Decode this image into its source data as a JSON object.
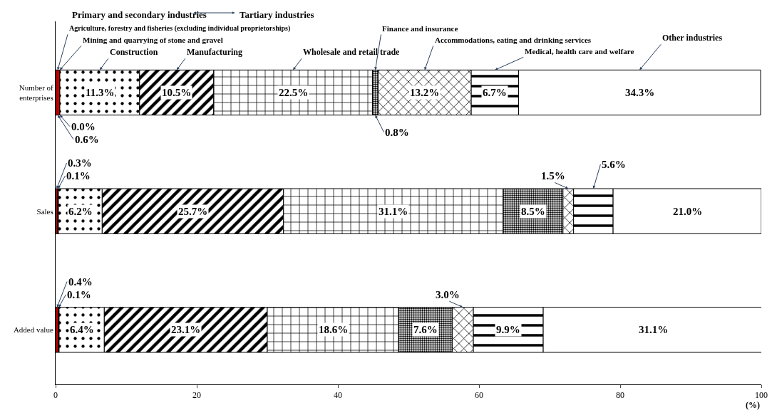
{
  "chart_data": {
    "type": "bar",
    "orientation": "horizontal",
    "stacked": true,
    "categories": [
      "Number of enterprises",
      "Sales",
      "Added value"
    ],
    "xlabel": "(%)",
    "xlim": [
      0,
      100
    ],
    "xticks": [
      0,
      20,
      40,
      60,
      80,
      100
    ],
    "annotations": [
      "Primary and secondary industries",
      "Tartiary industries"
    ],
    "series": [
      {
        "name": "Agriculture, forestry and fisheries (excluding individual proprietorships)",
        "color": "#c00000",
        "values": [
          0.6,
          0.3,
          0.4
        ],
        "value_labels": [
          "0.6%",
          "0.3%",
          "0.4%"
        ]
      },
      {
        "name": "Mining and quarrying of stone and gravel",
        "color": "#000000",
        "values": [
          0.0,
          0.1,
          0.1
        ],
        "value_labels": [
          "0.0%",
          "0.1%",
          "0.1%"
        ]
      },
      {
        "name": "Construction",
        "color": "#000000",
        "values": [
          11.3,
          6.2,
          6.4
        ],
        "value_labels": [
          "11.3%",
          "6.2%",
          "6.4%"
        ]
      },
      {
        "name": "Manufacturing",
        "color": "#000000",
        "values": [
          10.5,
          25.7,
          23.1
        ],
        "value_labels": [
          "10.5%",
          "25.7%",
          "23.1%"
        ]
      },
      {
        "name": "Wholesale and retail trade",
        "color": "#000000",
        "values": [
          22.5,
          31.1,
          18.6
        ],
        "value_labels": [
          "22.5%",
          "31.1%",
          "18.6%"
        ]
      },
      {
        "name": "Finance and insurance",
        "color": "#000000",
        "values": [
          0.8,
          8.5,
          7.6
        ],
        "value_labels": [
          "0.8%",
          "8.5%",
          "7.6%"
        ]
      },
      {
        "name": "Accommodations, eating and drinking services",
        "color": "#000000",
        "values": [
          13.2,
          1.5,
          3.0
        ],
        "value_labels": [
          "13.2%",
          "1.5%",
          "3.0%"
        ]
      },
      {
        "name": "Medical, health care and welfare",
        "color": "#000000",
        "values": [
          6.7,
          5.6,
          9.9
        ],
        "value_labels": [
          "6.7%",
          "5.6%",
          "9.9%"
        ]
      },
      {
        "name": "Other industries",
        "color": "#ffffff",
        "values": [
          34.3,
          21.0,
          31.1
        ],
        "value_labels": [
          "34.3%",
          "21.0%",
          "31.1%"
        ]
      }
    ]
  }
}
